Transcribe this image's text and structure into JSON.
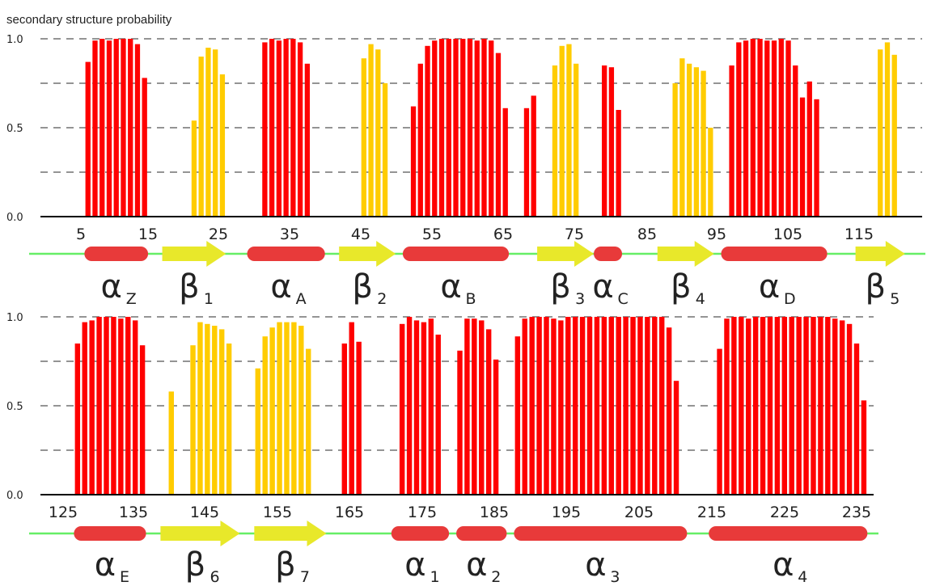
{
  "chart_data": {
    "type": "bar",
    "ylabel": "secondary structure probability",
    "ylim": [
      0,
      1
    ],
    "y_tick_labels": [
      "0.0",
      "0.5",
      "1.0"
    ],
    "grid": "dashed horizontal lines at 0.25 intervals",
    "colors": {
      "helix": "#ff0000",
      "strand": "#ffcc00",
      "helix_symbol": "#e83a3a",
      "strand_symbol": "#e8e82a",
      "coil_line": "#66ee66"
    },
    "panels": [
      {
        "x_range": [
          3,
          122
        ],
        "x_ticks": [
          5,
          15,
          25,
          35,
          45,
          55,
          65,
          75,
          85,
          95,
          105,
          115
        ],
        "helix_bars": [
          {
            "x": 6,
            "y": 0.87
          },
          {
            "x": 7,
            "y": 0.99
          },
          {
            "x": 8,
            "y": 1.0
          },
          {
            "x": 9,
            "y": 0.99
          },
          {
            "x": 10,
            "y": 1.0
          },
          {
            "x": 11,
            "y": 1.0
          },
          {
            "x": 12,
            "y": 1.0
          },
          {
            "x": 13,
            "y": 0.97
          },
          {
            "x": 14,
            "y": 0.78
          },
          {
            "x": 31,
            "y": 0.98
          },
          {
            "x": 32,
            "y": 1.0
          },
          {
            "x": 33,
            "y": 0.99
          },
          {
            "x": 34,
            "y": 1.0
          },
          {
            "x": 35,
            "y": 1.0
          },
          {
            "x": 36,
            "y": 0.98
          },
          {
            "x": 37,
            "y": 0.86
          },
          {
            "x": 52,
            "y": 0.62
          },
          {
            "x": 53,
            "y": 0.86
          },
          {
            "x": 54,
            "y": 0.96
          },
          {
            "x": 55,
            "y": 0.99
          },
          {
            "x": 56,
            "y": 1.0
          },
          {
            "x": 57,
            "y": 1.0
          },
          {
            "x": 58,
            "y": 1.0
          },
          {
            "x": 59,
            "y": 1.0
          },
          {
            "x": 60,
            "y": 1.0
          },
          {
            "x": 61,
            "y": 0.99
          },
          {
            "x": 62,
            "y": 1.0
          },
          {
            "x": 63,
            "y": 0.99
          },
          {
            "x": 64,
            "y": 0.92
          },
          {
            "x": 65,
            "y": 0.61
          },
          {
            "x": 68,
            "y": 0.61
          },
          {
            "x": 69,
            "y": 0.68
          },
          {
            "x": 79,
            "y": 0.85
          },
          {
            "x": 80,
            "y": 0.84
          },
          {
            "x": 81,
            "y": 0.6
          },
          {
            "x": 97,
            "y": 0.85
          },
          {
            "x": 98,
            "y": 0.98
          },
          {
            "x": 99,
            "y": 0.99
          },
          {
            "x": 100,
            "y": 1.0
          },
          {
            "x": 101,
            "y": 1.0
          },
          {
            "x": 102,
            "y": 0.99
          },
          {
            "x": 103,
            "y": 0.99
          },
          {
            "x": 104,
            "y": 1.0
          },
          {
            "x": 105,
            "y": 0.99
          },
          {
            "x": 106,
            "y": 0.85
          },
          {
            "x": 107,
            "y": 0.67
          },
          {
            "x": 108,
            "y": 0.76
          },
          {
            "x": 109,
            "y": 0.66
          }
        ],
        "strand_bars": [
          {
            "x": 21,
            "y": 0.54
          },
          {
            "x": 22,
            "y": 0.9
          },
          {
            "x": 23,
            "y": 0.95
          },
          {
            "x": 24,
            "y": 0.94
          },
          {
            "x": 25,
            "y": 0.8
          },
          {
            "x": 45,
            "y": 0.89
          },
          {
            "x": 46,
            "y": 0.97
          },
          {
            "x": 47,
            "y": 0.94
          },
          {
            "x": 48,
            "y": 0.75
          },
          {
            "x": 72,
            "y": 0.85
          },
          {
            "x": 73,
            "y": 0.96
          },
          {
            "x": 74,
            "y": 0.97
          },
          {
            "x": 75,
            "y": 0.86
          },
          {
            "x": 89,
            "y": 0.75
          },
          {
            "x": 90,
            "y": 0.89
          },
          {
            "x": 91,
            "y": 0.86
          },
          {
            "x": 92,
            "y": 0.84
          },
          {
            "x": 93,
            "y": 0.82
          },
          {
            "x": 94,
            "y": 0.5
          },
          {
            "x": 118,
            "y": 0.94
          },
          {
            "x": 119,
            "y": 0.98
          },
          {
            "x": 120,
            "y": 0.91
          }
        ],
        "structure_elements": [
          {
            "kind": "helix",
            "letter": "α",
            "sub": "Z",
            "start": 6,
            "end": 14
          },
          {
            "kind": "strand",
            "letter": "β",
            "sub": "1",
            "start": 17,
            "end": 25
          },
          {
            "kind": "helix",
            "letter": "α",
            "sub": "A",
            "start": 29,
            "end": 39
          },
          {
            "kind": "strand",
            "letter": "β",
            "sub": "2",
            "start": 42,
            "end": 49
          },
          {
            "kind": "helix",
            "letter": "α",
            "sub": "B",
            "start": 51,
            "end": 65
          },
          {
            "kind": "strand",
            "letter": "β",
            "sub": "3",
            "start": 70,
            "end": 77
          },
          {
            "kind": "helix",
            "letter": "α",
            "sub": "C",
            "start": 78,
            "end": 81
          },
          {
            "kind": "strand",
            "letter": "β",
            "sub": "4",
            "start": 87,
            "end": 94
          },
          {
            "kind": "helix",
            "letter": "α",
            "sub": "D",
            "start": 96,
            "end": 110
          },
          {
            "kind": "strand",
            "letter": "β",
            "sub": "5",
            "start": 115,
            "end": 121
          }
        ]
      },
      {
        "x_range": [
          124,
          237
        ],
        "x_ticks": [
          125,
          135,
          145,
          155,
          165,
          175,
          185,
          195,
          205,
          215,
          225,
          235
        ],
        "helix_bars": [
          {
            "x": 127,
            "y": 0.85
          },
          {
            "x": 128,
            "y": 0.97
          },
          {
            "x": 129,
            "y": 0.98
          },
          {
            "x": 130,
            "y": 1.0
          },
          {
            "x": 131,
            "y": 1.0
          },
          {
            "x": 132,
            "y": 1.0
          },
          {
            "x": 133,
            "y": 0.99
          },
          {
            "x": 134,
            "y": 1.0
          },
          {
            "x": 135,
            "y": 0.98
          },
          {
            "x": 136,
            "y": 0.84
          },
          {
            "x": 164,
            "y": 0.85
          },
          {
            "x": 165,
            "y": 0.97
          },
          {
            "x": 166,
            "y": 0.86
          },
          {
            "x": 172,
            "y": 0.96
          },
          {
            "x": 173,
            "y": 1.0
          },
          {
            "x": 174,
            "y": 0.98
          },
          {
            "x": 175,
            "y": 0.97
          },
          {
            "x": 176,
            "y": 0.99
          },
          {
            "x": 177,
            "y": 0.9
          },
          {
            "x": 180,
            "y": 0.81
          },
          {
            "x": 181,
            "y": 0.99
          },
          {
            "x": 182,
            "y": 0.99
          },
          {
            "x": 183,
            "y": 0.98
          },
          {
            "x": 184,
            "y": 0.93
          },
          {
            "x": 185,
            "y": 0.76
          },
          {
            "x": 188,
            "y": 0.89
          },
          {
            "x": 189,
            "y": 0.99
          },
          {
            "x": 190,
            "y": 1.0
          },
          {
            "x": 191,
            "y": 1.0
          },
          {
            "x": 192,
            "y": 1.0
          },
          {
            "x": 193,
            "y": 0.99
          },
          {
            "x": 194,
            "y": 0.98
          },
          {
            "x": 195,
            "y": 1.0
          },
          {
            "x": 196,
            "y": 1.0
          },
          {
            "x": 197,
            "y": 1.0
          },
          {
            "x": 198,
            "y": 1.0
          },
          {
            "x": 199,
            "y": 1.0
          },
          {
            "x": 200,
            "y": 1.0
          },
          {
            "x": 201,
            "y": 1.0
          },
          {
            "x": 202,
            "y": 1.0
          },
          {
            "x": 203,
            "y": 1.0
          },
          {
            "x": 204,
            "y": 1.0
          },
          {
            "x": 205,
            "y": 1.0
          },
          {
            "x": 206,
            "y": 1.0
          },
          {
            "x": 207,
            "y": 1.0
          },
          {
            "x": 208,
            "y": 1.0
          },
          {
            "x": 209,
            "y": 0.94
          },
          {
            "x": 210,
            "y": 0.64
          },
          {
            "x": 216,
            "y": 0.82
          },
          {
            "x": 217,
            "y": 0.99
          },
          {
            "x": 218,
            "y": 1.0
          },
          {
            "x": 219,
            "y": 1.0
          },
          {
            "x": 220,
            "y": 0.99
          },
          {
            "x": 221,
            "y": 1.0
          },
          {
            "x": 222,
            "y": 1.0
          },
          {
            "x": 223,
            "y": 1.0
          },
          {
            "x": 224,
            "y": 1.0
          },
          {
            "x": 225,
            "y": 1.0
          },
          {
            "x": 226,
            "y": 1.0
          },
          {
            "x": 227,
            "y": 1.0
          },
          {
            "x": 228,
            "y": 1.0
          },
          {
            "x": 229,
            "y": 1.0
          },
          {
            "x": 230,
            "y": 1.0
          },
          {
            "x": 231,
            "y": 1.0
          },
          {
            "x": 232,
            "y": 0.99
          },
          {
            "x": 233,
            "y": 0.98
          },
          {
            "x": 234,
            "y": 0.96
          },
          {
            "x": 235,
            "y": 0.85
          },
          {
            "x": 236,
            "y": 0.53
          }
        ],
        "strand_bars": [
          {
            "x": 140,
            "y": 0.58
          },
          {
            "x": 143,
            "y": 0.84
          },
          {
            "x": 144,
            "y": 0.97
          },
          {
            "x": 145,
            "y": 0.96
          },
          {
            "x": 146,
            "y": 0.95
          },
          {
            "x": 147,
            "y": 0.93
          },
          {
            "x": 148,
            "y": 0.85
          },
          {
            "x": 152,
            "y": 0.71
          },
          {
            "x": 153,
            "y": 0.89
          },
          {
            "x": 154,
            "y": 0.94
          },
          {
            "x": 155,
            "y": 0.97
          },
          {
            "x": 156,
            "y": 0.97
          },
          {
            "x": 157,
            "y": 0.97
          },
          {
            "x": 158,
            "y": 0.95
          },
          {
            "x": 159,
            "y": 0.82
          }
        ],
        "structure_elements": [
          {
            "kind": "helix",
            "letter": "α",
            "sub": "E",
            "start": 127,
            "end": 136
          },
          {
            "kind": "strand",
            "letter": "β",
            "sub": "6",
            "start": 139,
            "end": 149
          },
          {
            "kind": "strand",
            "letter": "β",
            "sub": "7",
            "start": 152,
            "end": 161
          },
          {
            "kind": "helix",
            "letter": "α",
            "sub": "1",
            "start": 171,
            "end": 178
          },
          {
            "kind": "helix",
            "letter": "α",
            "sub": "2",
            "start": 180,
            "end": 186
          },
          {
            "kind": "helix",
            "letter": "α",
            "sub": "3",
            "start": 188,
            "end": 211
          },
          {
            "kind": "helix",
            "letter": "α",
            "sub": "4",
            "start": 215,
            "end": 236
          }
        ]
      }
    ]
  }
}
